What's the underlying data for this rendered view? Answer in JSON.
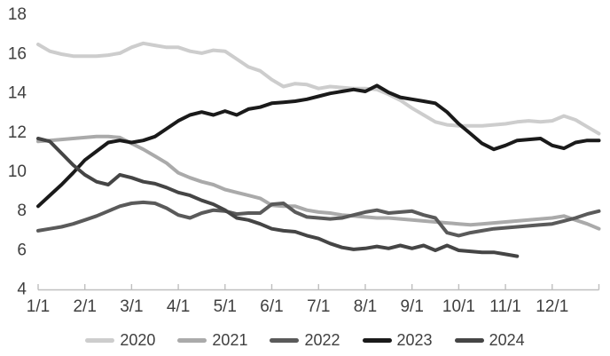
{
  "chart_data": {
    "type": "line",
    "title": "",
    "grid": false,
    "legend_position": "bottom",
    "x_start": 1,
    "x_step": 0.25,
    "x_axis": {
      "labels": [
        "1/1",
        "2/1",
        "3/1",
        "4/1",
        "5/1",
        "6/1",
        "7/1",
        "8/1",
        "9/1",
        "10/1",
        "11/1",
        "12/1"
      ],
      "range": [
        1,
        13
      ]
    },
    "y_axis": {
      "min": 4,
      "max": 18,
      "tick_step": 2,
      "ticks": [
        18,
        16,
        14,
        12,
        10,
        8,
        6,
        4
      ]
    },
    "series": [
      {
        "name": "2020",
        "color": "#cdcdcd",
        "values": [
          16.45,
          16.1,
          15.95,
          15.85,
          15.85,
          15.85,
          15.9,
          16.0,
          16.3,
          16.5,
          16.4,
          16.3,
          16.3,
          16.1,
          16.0,
          16.15,
          16.1,
          15.7,
          15.3,
          15.1,
          14.65,
          14.3,
          14.45,
          14.4,
          14.2,
          14.3,
          14.25,
          14.2,
          14.2,
          14.15,
          13.9,
          13.6,
          13.2,
          12.85,
          12.5,
          12.35,
          12.3,
          12.3,
          12.3,
          12.35,
          12.4,
          12.5,
          12.55,
          12.5,
          12.55,
          12.8,
          12.6,
          12.25,
          11.9
        ]
      },
      {
        "name": "2021",
        "color": "#aaaaaa",
        "values": [
          11.5,
          11.55,
          11.6,
          11.65,
          11.7,
          11.75,
          11.75,
          11.7,
          11.4,
          11.1,
          10.75,
          10.4,
          9.9,
          9.65,
          9.45,
          9.3,
          9.05,
          8.9,
          8.75,
          8.6,
          8.25,
          8.2,
          8.2,
          8.0,
          7.9,
          7.85,
          7.75,
          7.7,
          7.65,
          7.6,
          7.6,
          7.55,
          7.5,
          7.45,
          7.4,
          7.35,
          7.3,
          7.25,
          7.3,
          7.35,
          7.4,
          7.45,
          7.5,
          7.55,
          7.6,
          7.7,
          7.5,
          7.3,
          7.05
        ]
      },
      {
        "name": "2022",
        "color": "#5a5a5a",
        "values": [
          6.95,
          7.05,
          7.15,
          7.3,
          7.5,
          7.7,
          7.95,
          8.2,
          8.35,
          8.4,
          8.35,
          8.1,
          7.75,
          7.6,
          7.85,
          8.0,
          7.95,
          7.8,
          7.85,
          7.85,
          8.3,
          8.35,
          7.9,
          7.65,
          7.6,
          7.55,
          7.6,
          7.75,
          7.9,
          8.0,
          7.85,
          7.9,
          7.95,
          7.75,
          7.6,
          6.85,
          6.7,
          6.85,
          6.95,
          7.05,
          7.1,
          7.15,
          7.2,
          7.25,
          7.3,
          7.45,
          7.6,
          7.8,
          7.95
        ]
      },
      {
        "name": "2023",
        "color": "#1a1a1a",
        "values": [
          8.2,
          8.75,
          9.3,
          9.9,
          10.55,
          11.0,
          11.45,
          11.55,
          11.45,
          11.55,
          11.75,
          12.15,
          12.55,
          12.85,
          13.0,
          12.85,
          13.05,
          12.85,
          13.15,
          13.25,
          13.45,
          13.5,
          13.55,
          13.65,
          13.8,
          13.95,
          14.05,
          14.15,
          14.05,
          14.35,
          14.0,
          13.75,
          13.65,
          13.55,
          13.45,
          13.0,
          12.4,
          11.9,
          11.4,
          11.1,
          11.3,
          11.55,
          11.6,
          11.65,
          11.3,
          11.15,
          11.45,
          11.55,
          11.55
        ]
      },
      {
        "name": "2024",
        "color": "#454545",
        "values": [
          11.65,
          11.5,
          10.9,
          10.3,
          9.8,
          9.45,
          9.3,
          9.8,
          9.65,
          9.45,
          9.35,
          9.15,
          8.9,
          8.75,
          8.5,
          8.3,
          8.0,
          7.6,
          7.5,
          7.3,
          7.05,
          6.95,
          6.9,
          6.7,
          6.55,
          6.3,
          6.1,
          6.0,
          6.05,
          6.15,
          6.05,
          6.2,
          6.05,
          6.2,
          5.95,
          6.2,
          5.95,
          5.9,
          5.85,
          5.85,
          5.75,
          5.65
        ]
      }
    ]
  }
}
